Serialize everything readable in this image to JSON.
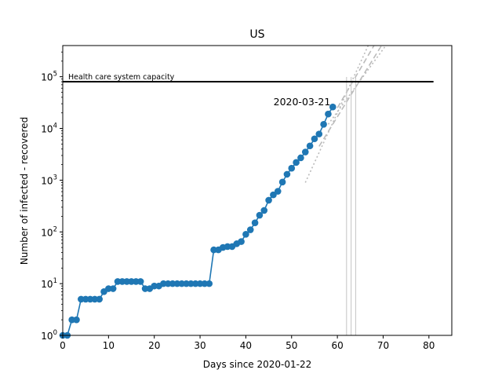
{
  "chart_data": {
    "type": "line",
    "title": "US",
    "xlabel": "Days since 2020-01-22",
    "ylabel": "Number of infected - recovered",
    "yscale": "log",
    "xlim": [
      0,
      85
    ],
    "ylim": [
      1,
      400000
    ],
    "xticks": [
      0,
      10,
      20,
      30,
      40,
      50,
      60,
      70,
      80
    ],
    "yticks": [
      {
        "value": 1,
        "mantissa": "10",
        "exponent": "0"
      },
      {
        "value": 10,
        "mantissa": "10",
        "exponent": "1"
      },
      {
        "value": 100,
        "mantissa": "10",
        "exponent": "2"
      },
      {
        "value": 1000,
        "mantissa": "10",
        "exponent": "3"
      },
      {
        "value": 10000,
        "mantissa": "10",
        "exponent": "4"
      },
      {
        "value": 100000,
        "mantissa": "10",
        "exponent": "5"
      }
    ],
    "grid": false,
    "colors": {
      "series": "#1f77b4",
      "capacity": "#000000",
      "projection": "#bbbbbb",
      "vline": "#cccccc"
    },
    "series": [
      {
        "name": "",
        "x": [
          0,
          1,
          2,
          3,
          4,
          5,
          6,
          7,
          8,
          9,
          10,
          11,
          12,
          13,
          14,
          15,
          16,
          17,
          18,
          19,
          20,
          21,
          22,
          23,
          24,
          25,
          26,
          27,
          28,
          29,
          30,
          31,
          32,
          33,
          34,
          35,
          36,
          37,
          38,
          39,
          40,
          41,
          42,
          43,
          44,
          45,
          46,
          47,
          48,
          49,
          50,
          51,
          52,
          53,
          54,
          55,
          56,
          57,
          58,
          59
        ],
        "y": [
          1,
          1,
          2,
          2,
          5,
          5,
          5,
          5,
          5,
          7,
          8,
          8,
          11,
          11,
          11,
          11,
          11,
          11,
          8,
          8,
          9,
          9,
          10,
          10,
          10,
          10,
          10,
          10,
          10,
          10,
          10,
          10,
          10,
          45,
          45,
          50,
          52,
          52,
          59,
          65,
          90,
          110,
          150,
          210,
          260,
          410,
          520,
          610,
          920,
          1300,
          1700,
          2200,
          2700,
          3500,
          4600,
          6300,
          7800,
          12000,
          19000,
          26000
        ]
      }
    ],
    "capacity_line": {
      "label": "Health care system capacity",
      "value": 80000,
      "x_range": [
        0,
        81
      ]
    },
    "annotation": {
      "text": "2020-03-21",
      "x": 59,
      "y": 26000
    },
    "projections": [
      {
        "style": "dotted",
        "points": [
          [
            53,
            900
          ],
          [
            67,
            450000
          ]
        ]
      },
      {
        "style": "dashed",
        "points": [
          [
            56,
            4500
          ],
          [
            70,
            450000
          ]
        ]
      },
      {
        "style": "dotted",
        "points": [
          [
            58,
            12000
          ],
          [
            71,
            450000
          ]
        ]
      },
      {
        "style": "dashed",
        "points": [
          [
            60,
            25000
          ],
          [
            68,
            400000
          ]
        ]
      }
    ],
    "vlines": [
      62,
      63,
      64
    ]
  }
}
